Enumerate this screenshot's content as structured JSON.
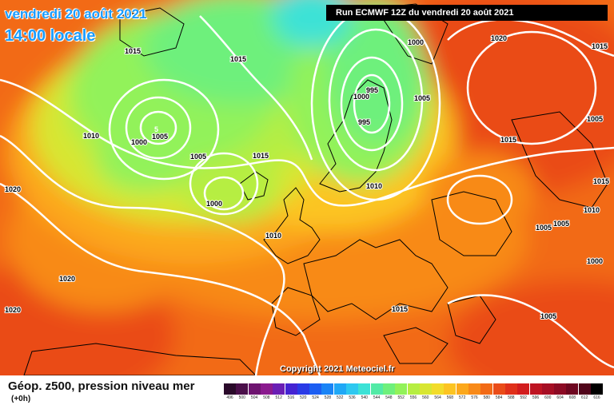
{
  "header": {
    "date": "vendredi 20 août 2021",
    "time": "14:00 locale",
    "run": "Run ECMWF 12Z du vendredi 20 août 2021"
  },
  "copyright": "Copyright 2021 Meteociel.fr",
  "footer": {
    "title": "Géop. z500, pression niveau mer",
    "subtitle": "(+0h)"
  },
  "legend": {
    "values": [
      "496",
      "500",
      "504",
      "508",
      "512",
      "516",
      "520",
      "524",
      "528",
      "532",
      "536",
      "540",
      "544",
      "548",
      "552",
      "556",
      "560",
      "564",
      "568",
      "572",
      "576",
      "580",
      "584",
      "588",
      "592",
      "596",
      "600",
      "604",
      "608",
      "612",
      "616"
    ],
    "colors": [
      "#2a0a2a",
      "#4a0f4a",
      "#6e1470",
      "#8a1a8e",
      "#6a1eb4",
      "#4423d2",
      "#2a3ae6",
      "#1c5ef2",
      "#1a84f6",
      "#20a8f6",
      "#2ec8f0",
      "#3ce2d6",
      "#52eaa6",
      "#6ef07c",
      "#92f25a",
      "#b6ee42",
      "#d8e632",
      "#f2dc2a",
      "#fcc422",
      "#fca81c",
      "#f88a18",
      "#f26a16",
      "#ea4c18",
      "#e0301a",
      "#d21c1e",
      "#be1422",
      "#a60e24",
      "#8c0a24",
      "#6e0620",
      "#50041a",
      "#000000"
    ]
  },
  "map": {
    "isobar_labels": [
      {
        "text": "1015"
      },
      {
        "text": "1015"
      },
      {
        "text": "1010"
      },
      {
        "text": "1005"
      },
      {
        "text": "1000"
      },
      {
        "text": "1005"
      },
      {
        "text": "1000"
      },
      {
        "text": "1015"
      },
      {
        "text": "1020"
      },
      {
        "text": "1020"
      },
      {
        "text": "1020"
      },
      {
        "text": "1010"
      },
      {
        "text": "1000"
      },
      {
        "text": "995"
      },
      {
        "text": "1000"
      },
      {
        "text": "995"
      },
      {
        "text": "1005"
      },
      {
        "text": "1010"
      },
      {
        "text": "1020"
      },
      {
        "text": "1015"
      },
      {
        "text": "1015"
      },
      {
        "text": "1005"
      },
      {
        "text": "1010"
      },
      {
        "text": "1005"
      },
      {
        "text": "1015"
      },
      {
        "text": "1005"
      },
      {
        "text": "1000"
      },
      {
        "text": "1015"
      },
      {
        "text": "1005"
      }
    ]
  }
}
